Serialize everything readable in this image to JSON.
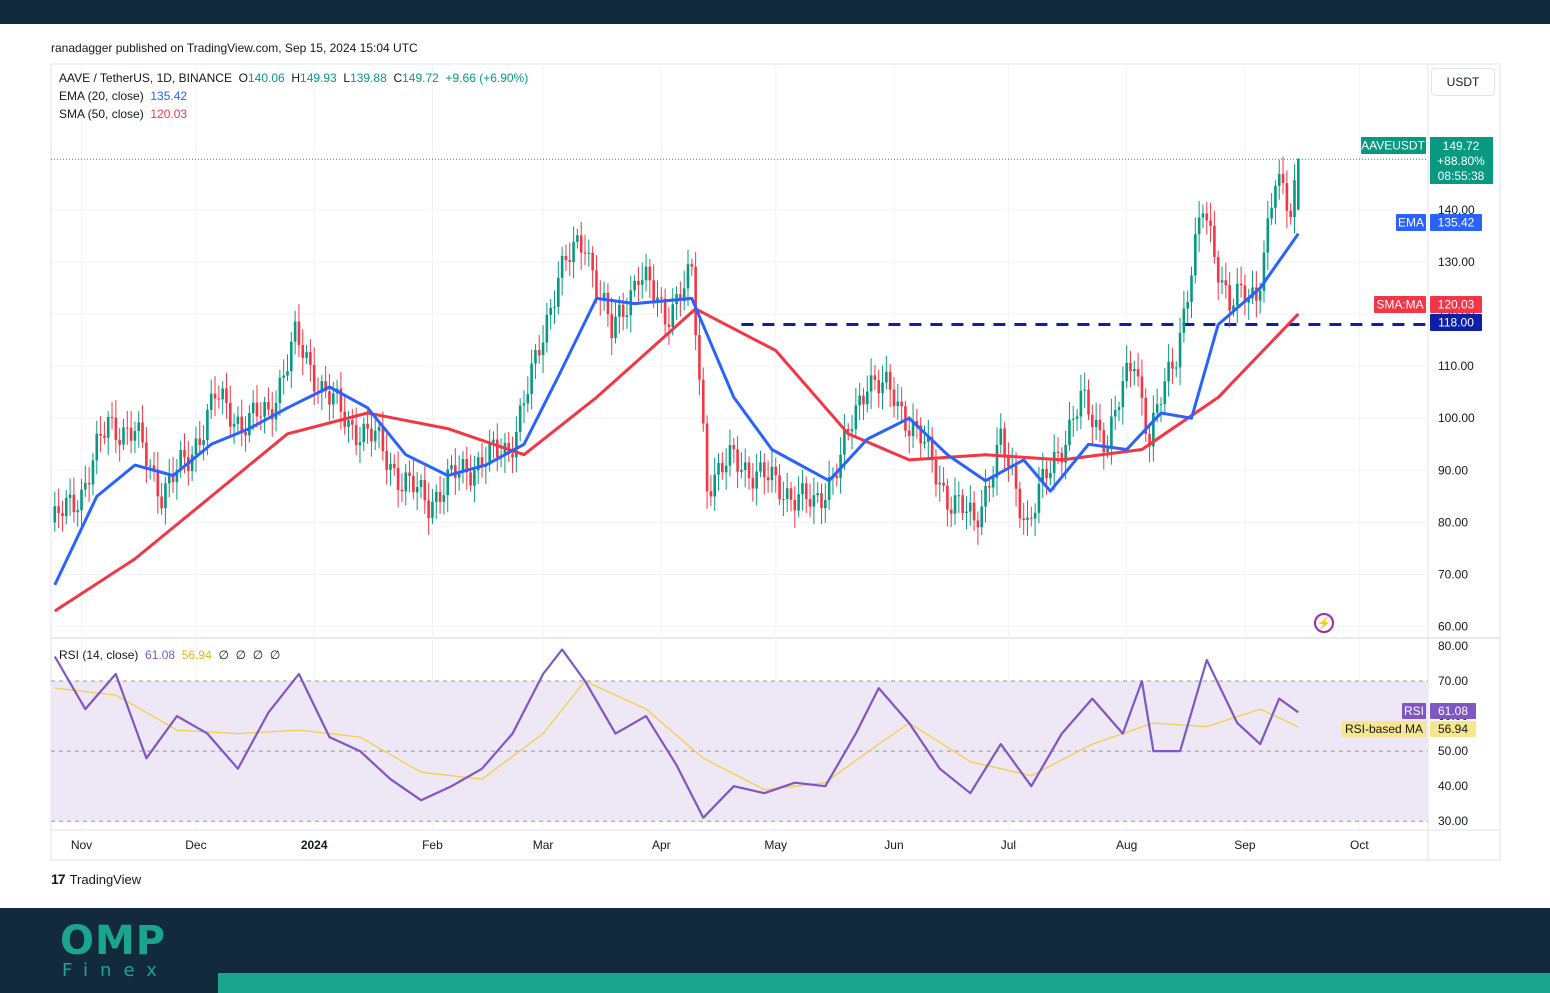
{
  "header": {
    "published": "ranadagger published on TradingView.com, Sep 15, 2024 15:04 UTC",
    "currency": "USDT"
  },
  "legend": {
    "symbol": "AAVE / TetherUS, 1D, BINANCE",
    "o_label": "O",
    "o": "140.06",
    "h_label": "H",
    "h": "149.93",
    "l_label": "L",
    "l": "139.88",
    "c_label": "C",
    "c": "149.72",
    "change": "+9.66 (+6.90%)",
    "ema_label": "EMA (20, close)",
    "ema_value": "135.42",
    "sma_label": "SMA (50, close)",
    "sma_value": "120.03",
    "rsi_label": "RSI (14, close)",
    "rsi_value": "61.08",
    "rsi_ma_value": "56.94",
    "rsi_extras": [
      "∅",
      "∅",
      "∅",
      "∅"
    ]
  },
  "footer": {
    "brand": "TradingView",
    "company": "OMP",
    "company_sub": "Finex"
  },
  "colors": {
    "up": "#089981",
    "down": "#f23645",
    "ema": "#2962ff",
    "sma": "#f23645",
    "level": "#0d1fa8",
    "rsi": "#7e57c2",
    "rsi_ma": "#f2d04a",
    "rsi_band": "#ede7f6"
  },
  "chart_data": [
    {
      "type": "candlestick",
      "title": "AAVE / TetherUS, 1D, BINANCE",
      "x_ticks": [
        "Nov",
        "Dec",
        "2024",
        "Feb",
        "Mar",
        "Apr",
        "May",
        "Jun",
        "Jul",
        "Aug",
        "Sep",
        "Oct"
      ],
      "y_ticks": [
        140,
        130,
        120,
        110,
        100,
        90,
        80,
        70,
        60
      ],
      "y_tick_labels": [
        "140.00",
        "130.00",
        "120.00",
        "110.00",
        "100.00",
        "90.00",
        "80.00",
        "70.00",
        "60.00"
      ],
      "ylim": [
        58,
        168
      ],
      "price_points": [
        [
          "2023-10-25",
          80
        ],
        [
          "2023-11-01",
          86
        ],
        [
          "2023-11-08",
          99
        ],
        [
          "2023-11-15",
          97
        ],
        [
          "2023-11-22",
          86
        ],
        [
          "2023-11-29",
          92
        ],
        [
          "2023-12-06",
          104
        ],
        [
          "2023-12-13",
          99
        ],
        [
          "2023-12-20",
          101
        ],
        [
          "2023-12-27",
          115
        ],
        [
          "2024-01-03",
          106
        ],
        [
          "2024-01-10",
          99
        ],
        [
          "2024-01-17",
          96
        ],
        [
          "2024-01-24",
          88
        ],
        [
          "2024-01-31",
          84
        ],
        [
          "2024-02-07",
          89
        ],
        [
          "2024-02-14",
          92
        ],
        [
          "2024-02-21",
          94
        ],
        [
          "2024-02-28",
          110
        ],
        [
          "2024-03-05",
          128
        ],
        [
          "2024-03-12",
          134
        ],
        [
          "2024-03-19",
          116
        ],
        [
          "2024-03-26",
          128
        ],
        [
          "2024-04-02",
          120
        ],
        [
          "2024-04-09",
          127
        ],
        [
          "2024-04-13",
          88
        ],
        [
          "2024-04-20",
          92
        ],
        [
          "2024-04-27",
          89
        ],
        [
          "2024-05-04",
          86
        ],
        [
          "2024-05-11",
          83
        ],
        [
          "2024-05-18",
          92
        ],
        [
          "2024-05-25",
          108
        ],
        [
          "2024-06-01",
          104
        ],
        [
          "2024-06-08",
          96
        ],
        [
          "2024-06-15",
          85
        ],
        [
          "2024-06-22",
          80
        ],
        [
          "2024-06-29",
          95
        ],
        [
          "2024-07-06",
          80
        ],
        [
          "2024-07-13",
          92
        ],
        [
          "2024-07-20",
          103
        ],
        [
          "2024-07-27",
          96
        ],
        [
          "2024-08-03",
          112
        ],
        [
          "2024-08-07",
          96
        ],
        [
          "2024-08-14",
          113
        ],
        [
          "2024-08-21",
          140
        ],
        [
          "2024-08-28",
          122
        ],
        [
          "2024-09-04",
          124
        ],
        [
          "2024-09-09",
          145
        ],
        [
          "2024-09-13",
          140
        ],
        [
          "2024-09-15",
          149.72
        ]
      ],
      "ema_points": [
        [
          "2023-10-25",
          68
        ],
        [
          "2023-11-05",
          85
        ],
        [
          "2023-11-15",
          91
        ],
        [
          "2023-11-25",
          89
        ],
        [
          "2023-12-05",
          95
        ],
        [
          "2023-12-15",
          98
        ],
        [
          "2023-12-25",
          102
        ],
        [
          "2024-01-05",
          106
        ],
        [
          "2024-01-15",
          102
        ],
        [
          "2024-01-25",
          93
        ],
        [
          "2024-02-05",
          89
        ],
        [
          "2024-02-15",
          91
        ],
        [
          "2024-02-25",
          95
        ],
        [
          "2024-03-05",
          108
        ],
        [
          "2024-03-15",
          123
        ],
        [
          "2024-03-25",
          122
        ],
        [
          "2024-04-09",
          123
        ],
        [
          "2024-04-20",
          104
        ],
        [
          "2024-04-30",
          94
        ],
        [
          "2024-05-15",
          88
        ],
        [
          "2024-05-25",
          96
        ],
        [
          "2024-06-05",
          100
        ],
        [
          "2024-06-15",
          93
        ],
        [
          "2024-06-25",
          88
        ],
        [
          "2024-07-05",
          92
        ],
        [
          "2024-07-12",
          86
        ],
        [
          "2024-07-22",
          95
        ],
        [
          "2024-08-01",
          94
        ],
        [
          "2024-08-10",
          101
        ],
        [
          "2024-08-18",
          100
        ],
        [
          "2024-08-25",
          118
        ],
        [
          "2024-09-05",
          125
        ],
        [
          "2024-09-15",
          135.42
        ]
      ],
      "sma_points": [
        [
          "2023-10-25",
          63
        ],
        [
          "2023-11-15",
          73
        ],
        [
          "2023-12-05",
          85
        ],
        [
          "2023-12-25",
          97
        ],
        [
          "2024-01-15",
          101
        ],
        [
          "2024-02-05",
          98
        ],
        [
          "2024-02-25",
          93
        ],
        [
          "2024-03-15",
          104
        ],
        [
          "2024-04-10",
          121
        ],
        [
          "2024-05-01",
          113
        ],
        [
          "2024-05-20",
          97
        ],
        [
          "2024-06-05",
          92
        ],
        [
          "2024-06-25",
          93
        ],
        [
          "2024-07-15",
          92
        ],
        [
          "2024-08-05",
          94
        ],
        [
          "2024-08-25",
          104
        ],
        [
          "2024-09-15",
          120.03
        ]
      ],
      "horizontal_level": {
        "value": 118,
        "from": "2024-04-22",
        "label": "118.00"
      },
      "last_price": {
        "symbol": "AAVEUSDT",
        "price": "149.72",
        "change": "+88.80%",
        "countdown": "08:55:38"
      },
      "tags": {
        "ema": "EMA",
        "ema_value": "135.42",
        "sma": "SMA:MA",
        "sma_value": "120.03"
      }
    },
    {
      "type": "line",
      "title": "RSI (14, close)",
      "y_ticks": [
        80,
        70,
        60,
        50,
        40,
        30
      ],
      "y_tick_labels": [
        "80.00",
        "70.00",
        "60.00",
        "50.00",
        "40.00",
        "30.00"
      ],
      "ylim": [
        27.5,
        82
      ],
      "bands": [
        30,
        50,
        70
      ],
      "rsi_points": [
        [
          "2023-10-25",
          77
        ],
        [
          "2023-11-02",
          62
        ],
        [
          "2023-11-10",
          72
        ],
        [
          "2023-11-18",
          48
        ],
        [
          "2023-11-26",
          60
        ],
        [
          "2023-12-04",
          55
        ],
        [
          "2023-12-12",
          45
        ],
        [
          "2023-12-20",
          61
        ],
        [
          "2023-12-28",
          72
        ],
        [
          "2024-01-05",
          54
        ],
        [
          "2024-01-13",
          50
        ],
        [
          "2024-01-21",
          42
        ],
        [
          "2024-01-29",
          36
        ],
        [
          "2024-02-06",
          40
        ],
        [
          "2024-02-14",
          45
        ],
        [
          "2024-02-22",
          55
        ],
        [
          "2024-03-01",
          72
        ],
        [
          "2024-03-06",
          79
        ],
        [
          "2024-03-12",
          70
        ],
        [
          "2024-03-20",
          55
        ],
        [
          "2024-03-28",
          60
        ],
        [
          "2024-04-05",
          46
        ],
        [
          "2024-04-12",
          31
        ],
        [
          "2024-04-20",
          40
        ],
        [
          "2024-04-28",
          38
        ],
        [
          "2024-05-06",
          41
        ],
        [
          "2024-05-14",
          40
        ],
        [
          "2024-05-22",
          55
        ],
        [
          "2024-05-28",
          68
        ],
        [
          "2024-06-05",
          58
        ],
        [
          "2024-06-13",
          45
        ],
        [
          "2024-06-21",
          38
        ],
        [
          "2024-06-29",
          52
        ],
        [
          "2024-07-07",
          40
        ],
        [
          "2024-07-15",
          55
        ],
        [
          "2024-07-23",
          65
        ],
        [
          "2024-07-31",
          55
        ],
        [
          "2024-08-05",
          70
        ],
        [
          "2024-08-08",
          50
        ],
        [
          "2024-08-15",
          50
        ],
        [
          "2024-08-22",
          76
        ],
        [
          "2024-08-30",
          58
        ],
        [
          "2024-09-05",
          52
        ],
        [
          "2024-09-10",
          65
        ],
        [
          "2024-09-15",
          61.08
        ]
      ],
      "rsi_ma_points": [
        [
          "2023-10-25",
          68
        ],
        [
          "2023-11-10",
          66
        ],
        [
          "2023-11-26",
          56
        ],
        [
          "2023-12-12",
          55
        ],
        [
          "2023-12-28",
          56
        ],
        [
          "2024-01-13",
          54
        ],
        [
          "2024-01-29",
          44
        ],
        [
          "2024-02-14",
          42
        ],
        [
          "2024-03-01",
          55
        ],
        [
          "2024-03-12",
          70
        ],
        [
          "2024-03-28",
          62
        ],
        [
          "2024-04-12",
          48
        ],
        [
          "2024-04-28",
          39
        ],
        [
          "2024-05-14",
          41
        ],
        [
          "2024-05-28",
          52
        ],
        [
          "2024-06-05",
          58
        ],
        [
          "2024-06-21",
          47
        ],
        [
          "2024-07-07",
          43
        ],
        [
          "2024-07-23",
          52
        ],
        [
          "2024-08-08",
          58
        ],
        [
          "2024-08-22",
          57
        ],
        [
          "2024-09-05",
          62
        ],
        [
          "2024-09-15",
          56.94
        ]
      ],
      "tags": {
        "rsi": "RSI",
        "rsi_value": "61.08",
        "rsi_ma": "RSI-based MA",
        "rsi_ma_value": "56.94"
      }
    }
  ]
}
